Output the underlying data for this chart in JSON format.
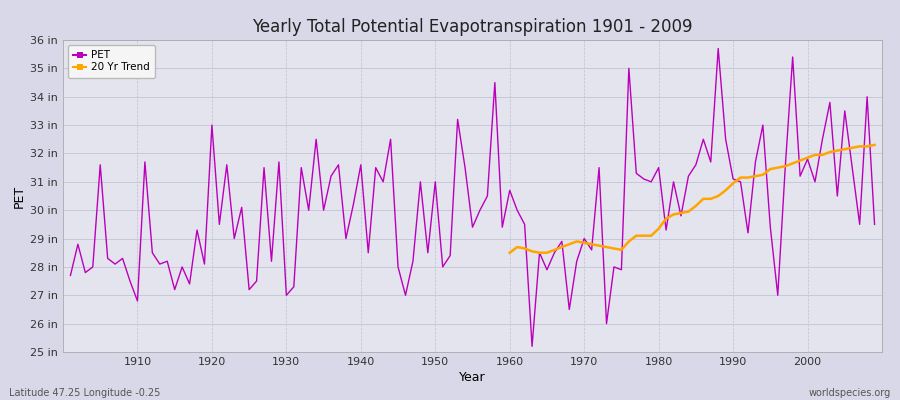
{
  "title": "Yearly Total Potential Evapotranspiration 1901 - 2009",
  "xlabel": "Year",
  "ylabel": "PET",
  "pet_color": "#BB00BB",
  "trend_color": "#FFA500",
  "bg_color": "#D8D8E8",
  "plot_bg_color": "#E4E4EE",
  "grid_color_h": "#C8C8D8",
  "grid_color_v": "#C0C0D0",
  "ylim": [
    25,
    36
  ],
  "yticks": [
    25,
    26,
    27,
    28,
    29,
    30,
    31,
    32,
    33,
    34,
    35,
    36
  ],
  "ytick_labels": [
    "25 in",
    "26 in",
    "27 in",
    "28 in",
    "29 in",
    "30 in",
    "31 in",
    "32 in",
    "33 in",
    "34 in",
    "35 in",
    "36 in"
  ],
  "footer_left": "Latitude 47.25 Longitude -0.25",
  "footer_right": "worldspecies.org",
  "years": [
    1901,
    1902,
    1903,
    1904,
    1905,
    1906,
    1907,
    1908,
    1909,
    1910,
    1911,
    1912,
    1913,
    1914,
    1915,
    1916,
    1917,
    1918,
    1919,
    1920,
    1921,
    1922,
    1923,
    1924,
    1925,
    1926,
    1927,
    1928,
    1929,
    1930,
    1931,
    1932,
    1933,
    1934,
    1935,
    1936,
    1937,
    1938,
    1939,
    1940,
    1941,
    1942,
    1943,
    1944,
    1945,
    1946,
    1947,
    1948,
    1949,
    1950,
    1951,
    1952,
    1953,
    1954,
    1955,
    1956,
    1957,
    1958,
    1959,
    1960,
    1961,
    1962,
    1963,
    1964,
    1965,
    1966,
    1967,
    1968,
    1969,
    1970,
    1971,
    1972,
    1973,
    1974,
    1975,
    1976,
    1977,
    1978,
    1979,
    1980,
    1981,
    1982,
    1983,
    1984,
    1985,
    1986,
    1987,
    1988,
    1989,
    1990,
    1991,
    1992,
    1993,
    1994,
    1995,
    1996,
    1997,
    1998,
    1999,
    2000,
    2001,
    2002,
    2003,
    2004,
    2005,
    2006,
    2007,
    2008,
    2009
  ],
  "pet": [
    27.7,
    28.8,
    27.8,
    28.0,
    31.6,
    28.3,
    28.1,
    28.3,
    27.5,
    26.8,
    31.7,
    28.5,
    28.1,
    28.2,
    27.2,
    28.0,
    27.4,
    29.3,
    28.1,
    33.0,
    29.5,
    31.6,
    29.0,
    30.1,
    27.2,
    27.5,
    31.5,
    28.2,
    31.7,
    27.0,
    27.3,
    31.5,
    30.0,
    32.5,
    30.0,
    31.2,
    31.6,
    29.0,
    30.2,
    31.6,
    28.5,
    31.5,
    31.0,
    32.5,
    28.0,
    27.0,
    28.2,
    31.0,
    28.5,
    31.0,
    28.0,
    28.4,
    33.2,
    31.5,
    29.4,
    30.0,
    30.5,
    34.5,
    29.4,
    30.7,
    30.0,
    29.5,
    25.2,
    28.5,
    27.9,
    28.5,
    28.9,
    26.5,
    28.2,
    29.0,
    28.6,
    31.5,
    26.0,
    28.0,
    27.9,
    35.0,
    31.3,
    31.1,
    31.0,
    31.5,
    29.3,
    31.0,
    29.8,
    31.2,
    31.6,
    32.5,
    31.7,
    35.7,
    32.5,
    31.1,
    31.0,
    29.2,
    31.7,
    33.0,
    29.4,
    27.0,
    31.5,
    35.4,
    31.2,
    31.8,
    31.0,
    32.5,
    33.8,
    30.5,
    33.5,
    31.5,
    29.5,
    34.0,
    29.5
  ],
  "trend_years": [
    1960,
    1961,
    1962,
    1963,
    1964,
    1965,
    1966,
    1967,
    1968,
    1969,
    1970,
    1971,
    1972,
    1973,
    1974,
    1975,
    1976,
    1977,
    1978,
    1979,
    1980,
    1981,
    1982,
    1983,
    1984,
    1985,
    1986,
    1987,
    1988,
    1989,
    1990,
    1991,
    1992,
    1993,
    1994,
    1995,
    1996,
    1997,
    1998,
    1999,
    2000,
    2001,
    2002,
    2003,
    2004,
    2005,
    2006,
    2007,
    2008,
    2009
  ],
  "trend": [
    28.5,
    28.7,
    28.65,
    28.55,
    28.5,
    28.5,
    28.6,
    28.7,
    28.8,
    28.9,
    28.85,
    28.8,
    28.75,
    28.7,
    28.65,
    28.6,
    28.9,
    29.1,
    29.1,
    29.1,
    29.35,
    29.7,
    29.85,
    29.9,
    29.95,
    30.15,
    30.4,
    30.4,
    30.5,
    30.7,
    30.95,
    31.15,
    31.15,
    31.2,
    31.25,
    31.45,
    31.5,
    31.55,
    31.65,
    31.75,
    31.85,
    31.95,
    31.95,
    32.05,
    32.1,
    32.15,
    32.2,
    32.25,
    32.25,
    32.3
  ]
}
